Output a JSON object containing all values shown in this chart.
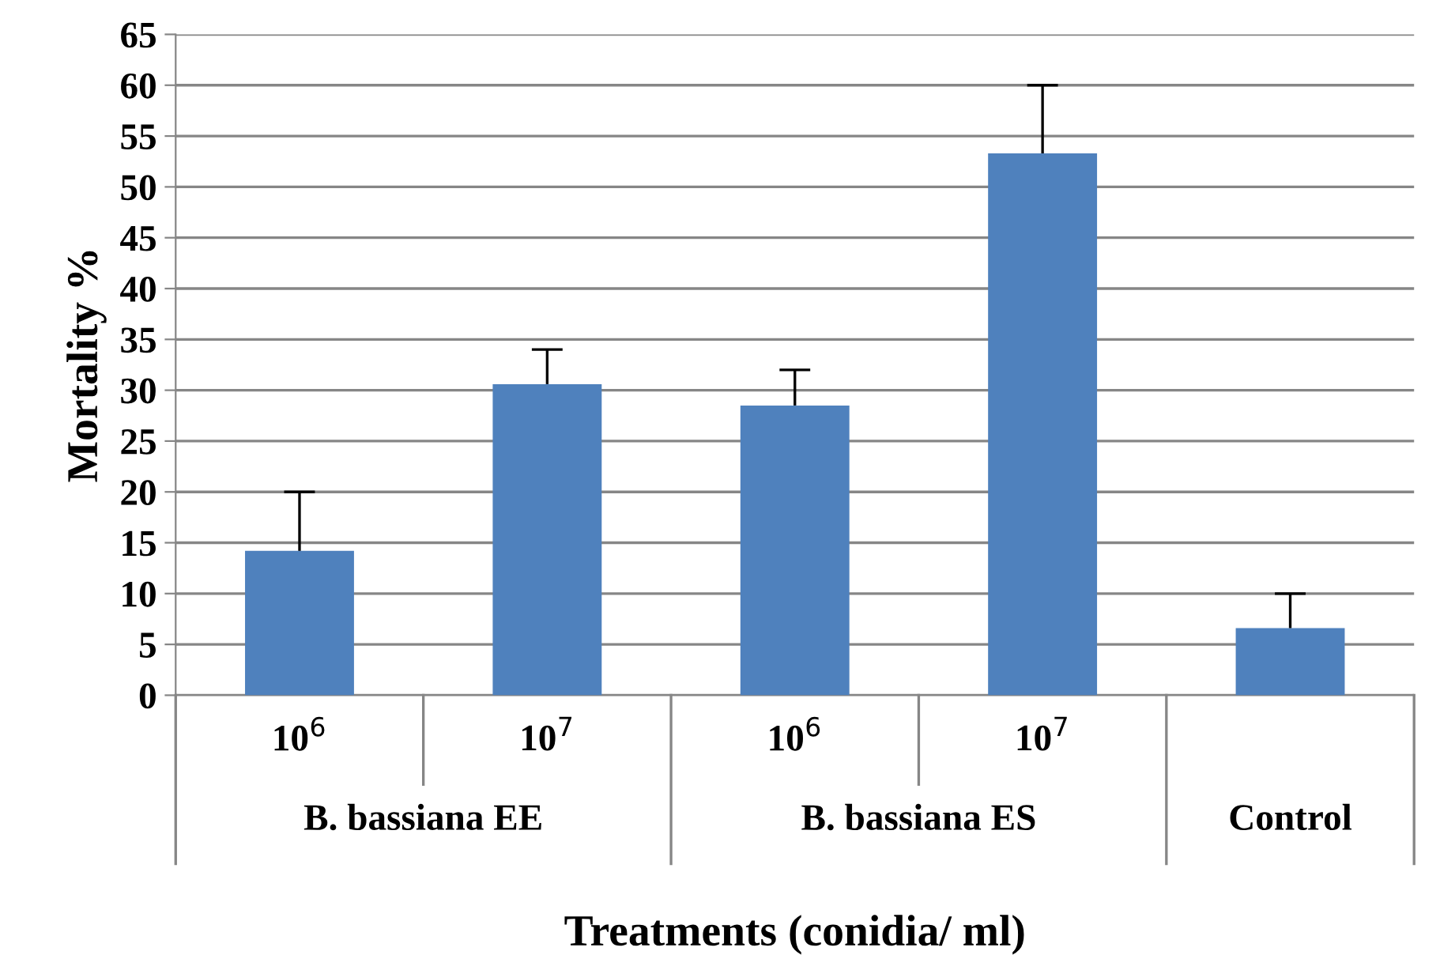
{
  "chart_data": {
    "type": "bar",
    "xlabel": "Treatments (conidia/ ml)",
    "ylabel": "Mortality %",
    "categories": [
      "10$^{6}$",
      "10$^{7}$",
      "10$^{6}$",
      "10$^{7}$",
      null
    ],
    "values": [
      14.2,
      30.6,
      28.5,
      53.3,
      6.6
    ],
    "errors": [
      [
        14.2,
        20
      ],
      [
        30.6,
        34
      ],
      [
        28.5,
        32
      ],
      [
        53.3,
        60
      ],
      [
        6.6,
        10
      ]
    ],
    "color": "#4f81bd",
    "ylim": [
      0,
      65
    ],
    "yticks": [
      0,
      5,
      10,
      15,
      20,
      25,
      30,
      35,
      40,
      45,
      50,
      55,
      60,
      65
    ],
    "grid": "y",
    "annotations": [
      "B. bassiana EE",
      "B. bassiana ES",
      "Control"
    ]
  }
}
